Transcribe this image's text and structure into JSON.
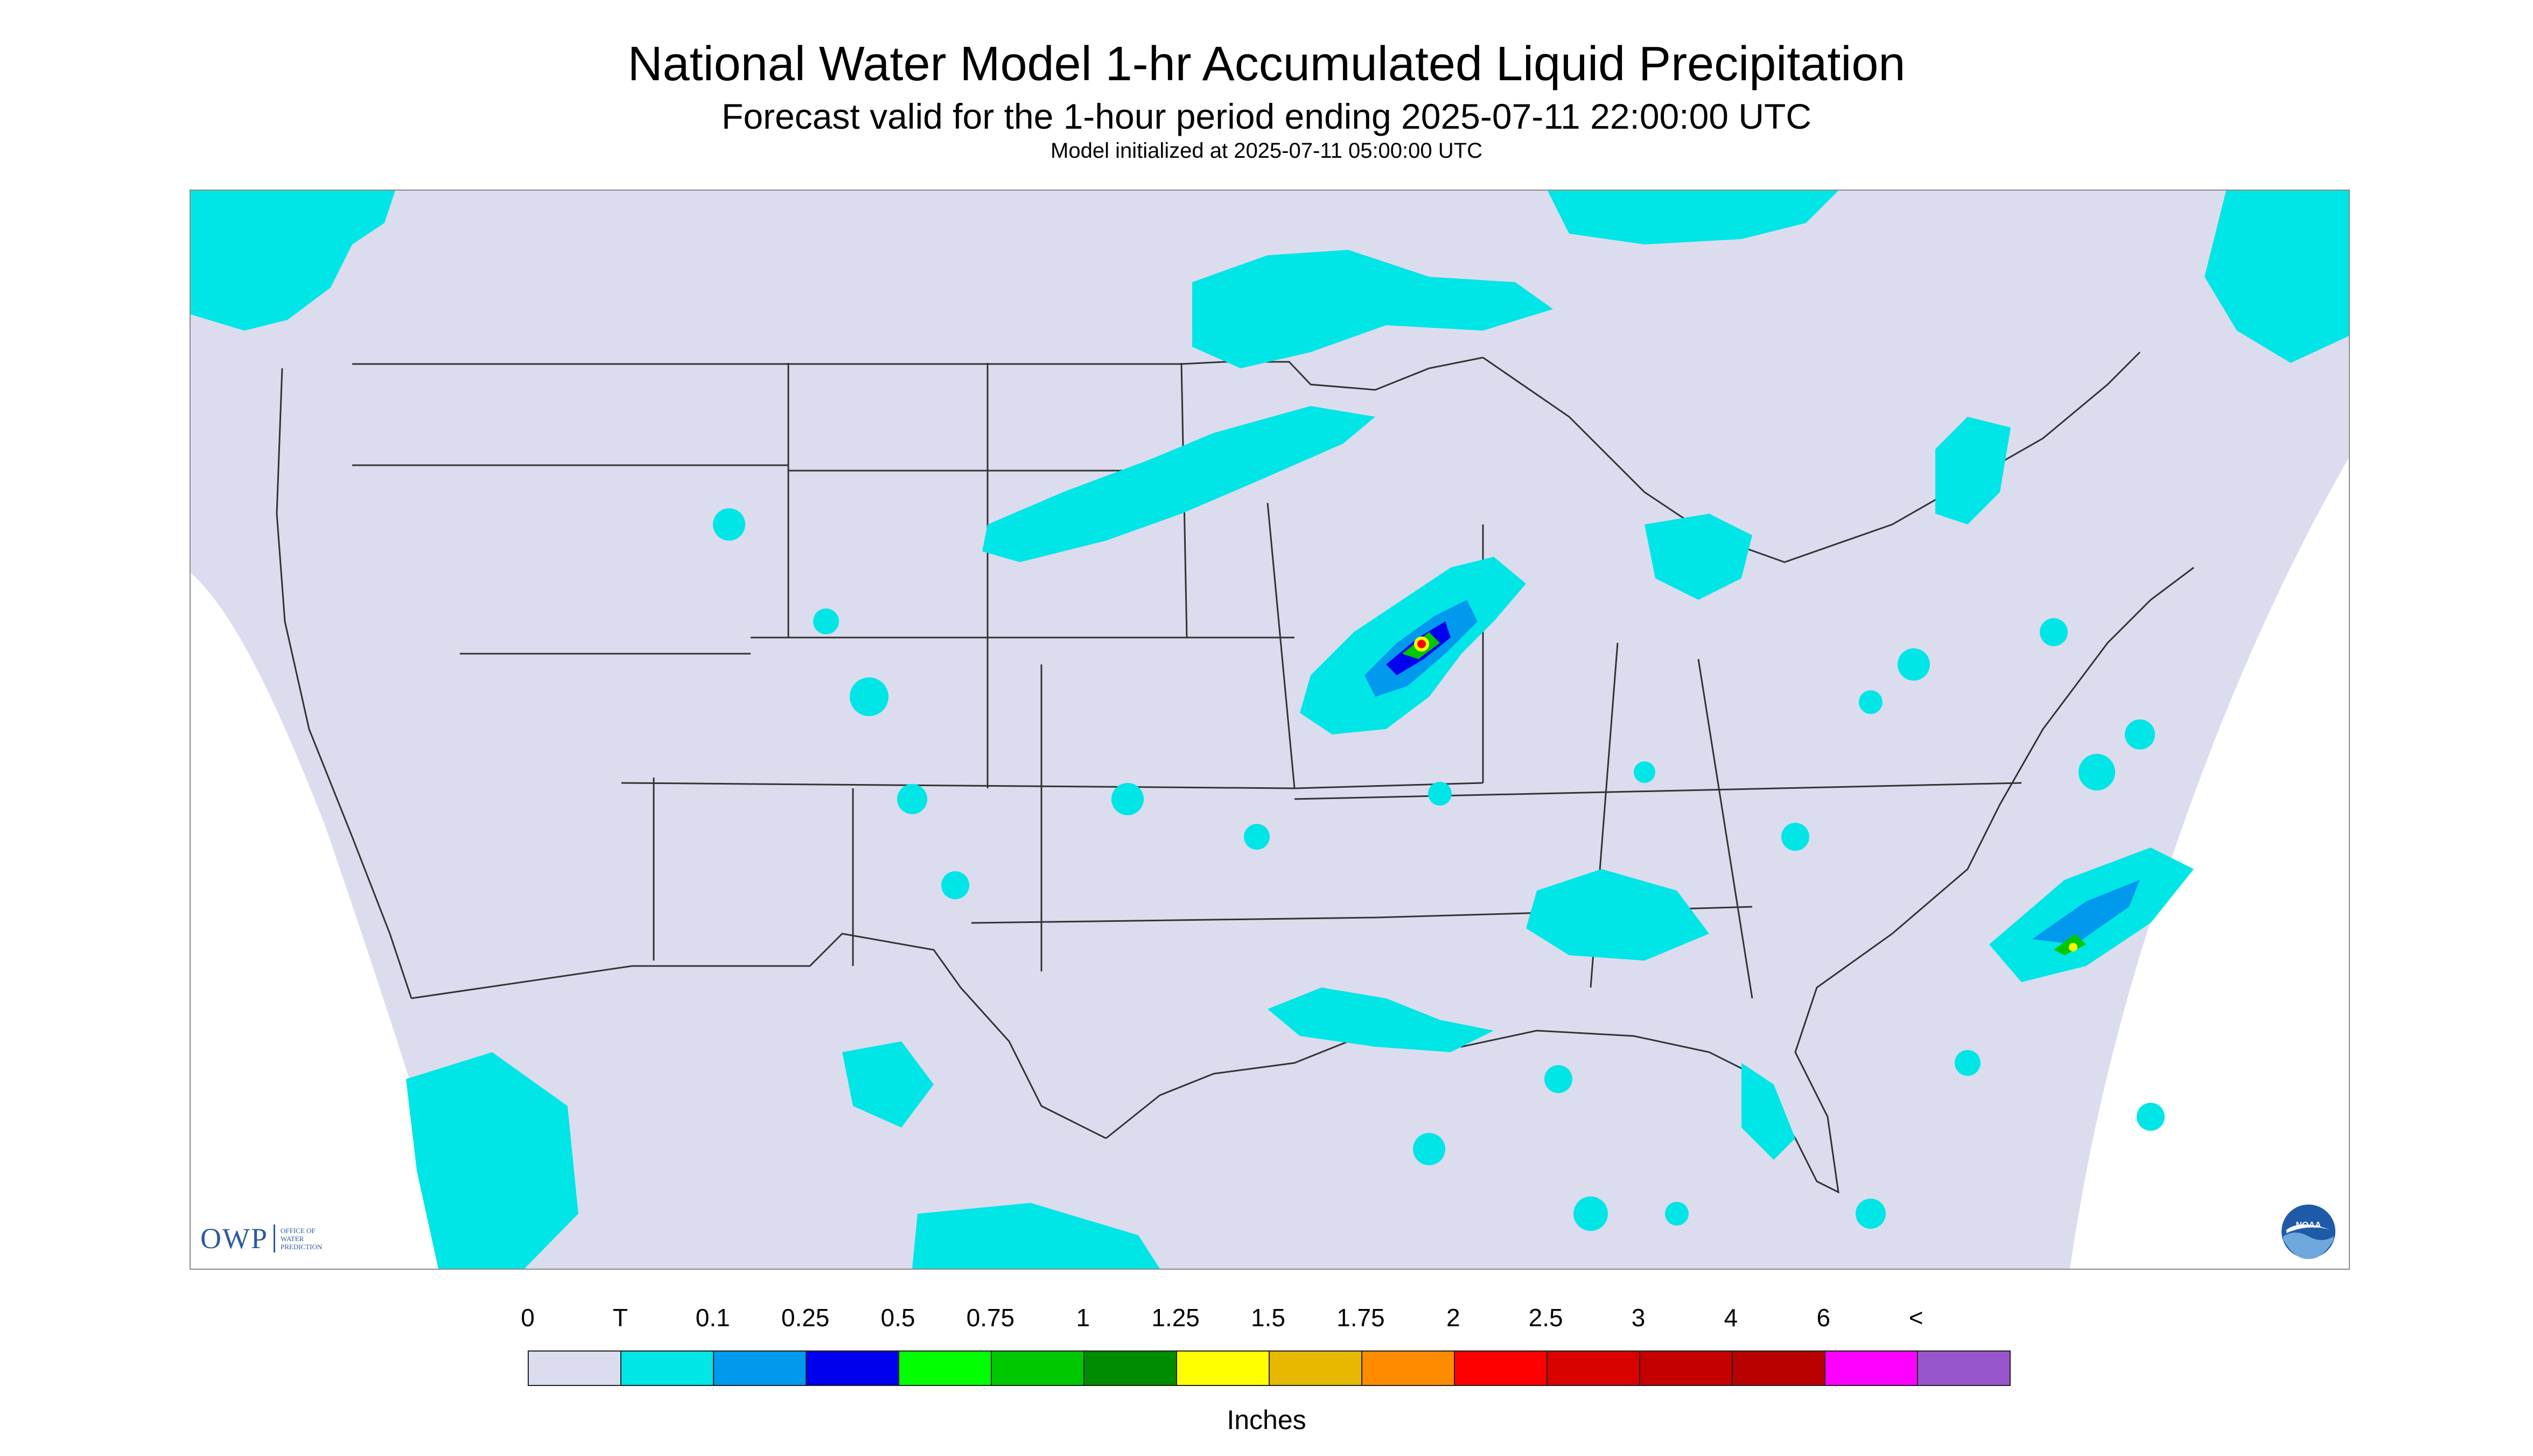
{
  "title": "National Water Model 1-hr Accumulated Liquid Precipitation",
  "subtitle": "Forecast valid for the 1-hour period ending 2025-07-11 22:00:00 UTC",
  "init_line": "Model initialized at 2025-07-11 05:00:00 UTC",
  "logo": {
    "text": "OWP",
    "small_lines": [
      "OFFICE OF",
      "WATER",
      "PREDICTION"
    ]
  },
  "noaa_logo": "NOAA",
  "legend": {
    "labels": [
      "0",
      "T",
      "0.1",
      "0.25",
      "0.5",
      "0.75",
      "1",
      "1.25",
      "1.5",
      "1.75",
      "2",
      "2.5",
      "3",
      "4",
      "6",
      "<"
    ],
    "colors": [
      "#dcdcef",
      "#00e5e5",
      "#0099ee",
      "#0000ee",
      "#00ff00",
      "#00c800",
      "#008c00",
      "#ffff00",
      "#e6b800",
      "#ff8c00",
      "#ff0000",
      "#d90000",
      "#c40000",
      "#b80000",
      "#ff00ff",
      "#9955cc"
    ],
    "units": "Inches"
  },
  "map_colors": {
    "background": "#dcdcef",
    "outside": "#ffffff",
    "border": "#333333"
  }
}
